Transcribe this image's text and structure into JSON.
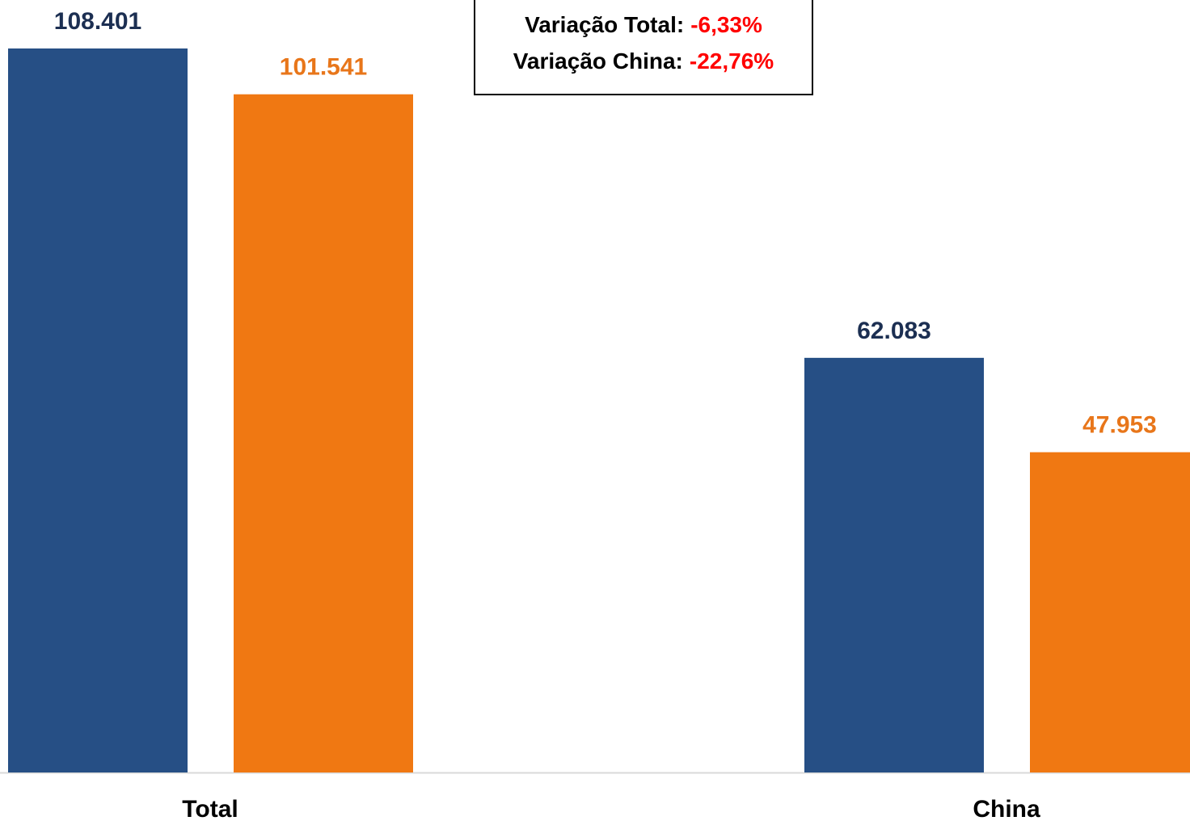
{
  "chart_data": {
    "type": "bar",
    "categories": [
      "Total",
      "China"
    ],
    "series": [
      {
        "color": "#264f85",
        "label_color": "#1c2f52",
        "values": [
          108401,
          62083
        ],
        "value_labels": [
          "108.401",
          "62.083"
        ]
      },
      {
        "color": "#f07812",
        "label_color": "#e8761a",
        "values": [
          101541,
          47953
        ],
        "value_labels": [
          "101.541",
          "47.953"
        ]
      }
    ],
    "annotations": [
      {
        "text": "Variação Total:",
        "value": "-6,33%"
      },
      {
        "text": "Variação China:",
        "value": "-22,76%"
      }
    ],
    "annotation_value_color": "#ff0000"
  }
}
